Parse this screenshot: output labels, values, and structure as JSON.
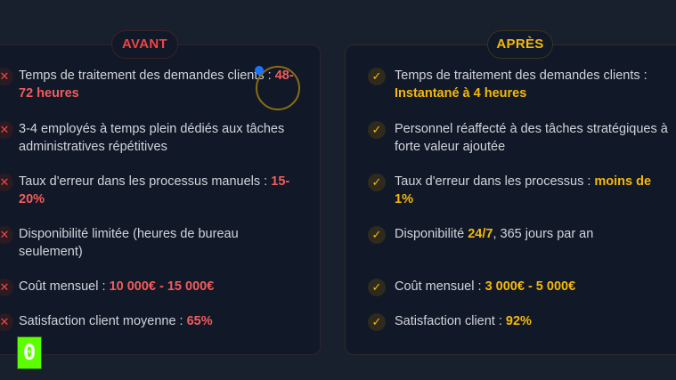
{
  "avant": {
    "label": "AVANT",
    "icon": "x-icon",
    "color": "#ef4444",
    "items": [
      {
        "text": "Temps de traitement des demandes clients : ",
        "highlight": "48-72 heures",
        "after": ""
      },
      {
        "text": "3-4 employés à temps plein dédiés aux tâches administratives répétitives",
        "highlight": "",
        "after": ""
      },
      {
        "text": "Taux d'erreur dans les processus manuels : ",
        "highlight": "15-20%",
        "after": ""
      },
      {
        "text": "Disponibilité limitée (heures de bureau seulement)",
        "highlight": "",
        "after": ""
      },
      {
        "text": "Coût mensuel : ",
        "highlight": "10 000€ - 15 000€",
        "after": ""
      },
      {
        "text": "Satisfaction client moyenne : ",
        "highlight": "65%",
        "after": ""
      }
    ]
  },
  "apres": {
    "label": "APRÈS",
    "icon": "check-icon",
    "color": "#f5b90b",
    "items": [
      {
        "text": "Temps de traitement des demandes clients : ",
        "highlight": "Instantané à 4 heures",
        "after": ""
      },
      {
        "text": "Personnel réaffecté à des tâches stratégiques à forte valeur ajoutée",
        "highlight": "",
        "after": ""
      },
      {
        "text": "Taux d'erreur dans les processus : ",
        "highlight": "moins de 1%",
        "after": ""
      },
      {
        "text": "Disponibilité ",
        "highlight": "24/7",
        "after": ", 365 jours par an"
      },
      {
        "text": "Coût mensuel : ",
        "highlight": "3 000€ - 5 000€",
        "after": ""
      },
      {
        "text": "Satisfaction client : ",
        "highlight": "92%",
        "after": ""
      }
    ]
  },
  "overlay": {
    "marker_label": "0"
  }
}
